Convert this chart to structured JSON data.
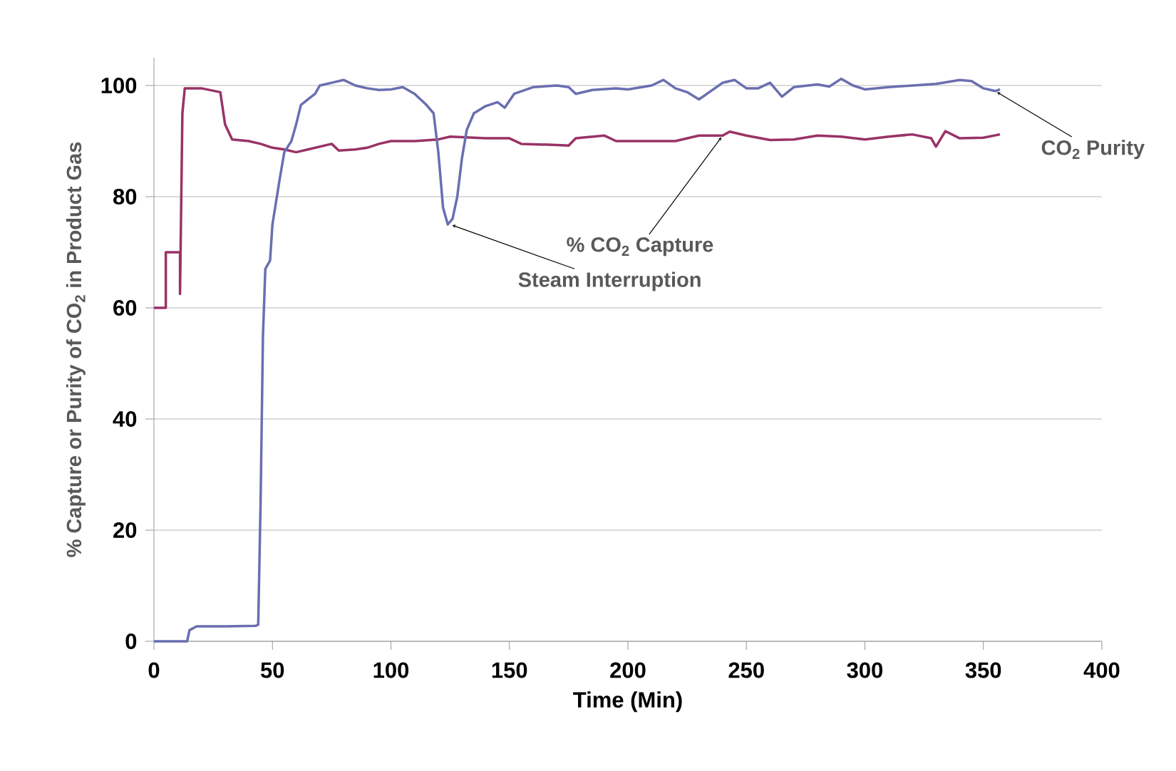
{
  "chart_data": {
    "type": "line",
    "xlabel": "Time (Min)",
    "ylabel": "% Capture or Purity of CO$_{2}$ in Product Gas",
    "xlim": [
      0,
      400
    ],
    "ylim": [
      0,
      105
    ],
    "xticks": [
      0,
      50,
      100,
      150,
      200,
      250,
      300,
      350,
      400
    ],
    "yticks": [
      0,
      20,
      40,
      60,
      80,
      100
    ],
    "grid": "y",
    "line_style": "solid",
    "marker": "none",
    "series": [
      {
        "color": "#993366",
        "x": [
          0,
          5,
          5,
          11,
          11,
          12,
          13,
          20,
          28,
          30,
          33,
          40,
          45,
          50,
          55,
          60,
          65,
          70,
          75,
          78,
          85,
          90,
          95,
          100,
          110,
          120,
          125,
          140,
          150,
          155,
          170,
          175,
          178,
          190,
          195,
          210,
          220,
          230,
          240,
          243,
          250,
          260,
          270,
          280,
          290,
          300,
          310,
          320,
          328,
          330,
          334,
          340,
          350,
          357
        ],
        "values": [
          60,
          60,
          70,
          70,
          62.5,
          95,
          99.5,
          99.5,
          98.8,
          93,
          90.3,
          90,
          89.5,
          88.8,
          88.5,
          88,
          88.5,
          89,
          89.5,
          88.3,
          88.5,
          88.8,
          89.5,
          90,
          90,
          90.3,
          90.8,
          90.5,
          90.5,
          89.5,
          89.3,
          89.2,
          90.5,
          91,
          90,
          90,
          90,
          91,
          91,
          91.7,
          91,
          90.2,
          90.3,
          91,
          90.8,
          90.3,
          90.8,
          91.2,
          90.5,
          89,
          91.8,
          90.5,
          90.6,
          91.2
        ]
      },
      {
        "color": "#6A6FB0",
        "x": [
          0,
          14,
          15,
          18,
          30,
          43,
          44,
          45,
          46,
          47,
          49,
          50,
          53,
          55,
          58,
          60,
          62,
          65,
          68,
          70,
          75,
          80,
          85,
          90,
          95,
          100,
          105,
          110,
          115,
          118,
          120,
          122,
          124,
          126,
          128,
          130,
          132,
          135,
          140,
          145,
          148,
          152,
          160,
          170,
          175,
          178,
          185,
          195,
          200,
          210,
          215,
          220,
          225,
          230,
          235,
          240,
          245,
          250,
          255,
          260,
          265,
          270,
          280,
          285,
          290,
          295,
          300,
          310,
          320,
          330,
          340,
          345,
          350,
          355,
          357
        ],
        "values": [
          0,
          0,
          2,
          2.7,
          2.7,
          2.8,
          3,
          25,
          55,
          67,
          68.5,
          75,
          83,
          88,
          90,
          93,
          96.5,
          97.5,
          98.5,
          100,
          100.5,
          101,
          100,
          99.5,
          99.2,
          99.3,
          99.7,
          98.5,
          96.5,
          95,
          88,
          78,
          75,
          76,
          80,
          87,
          92,
          95,
          96.3,
          97,
          96,
          98.5,
          99.7,
          100,
          99.7,
          98.5,
          99.2,
          99.5,
          99.3,
          100,
          101,
          99.5,
          98.8,
          97.5,
          99,
          100.5,
          101,
          99.5,
          99.5,
          100.5,
          98,
          99.7,
          100.2,
          99.8,
          101.2,
          100,
          99.3,
          99.7,
          100,
          100.3,
          101,
          100.8,
          99.5,
          99,
          99.3
        ]
      }
    ],
    "annotations": [
      {
        "text": "% CO$_{2}$ Capture",
        "x": 240,
        "y": 91
      },
      {
        "text": "Steam Interruption",
        "x": 125,
        "y": 75
      },
      {
        "text": "CO$_{2}$ Purity",
        "x": 355,
        "y": 99
      }
    ]
  }
}
